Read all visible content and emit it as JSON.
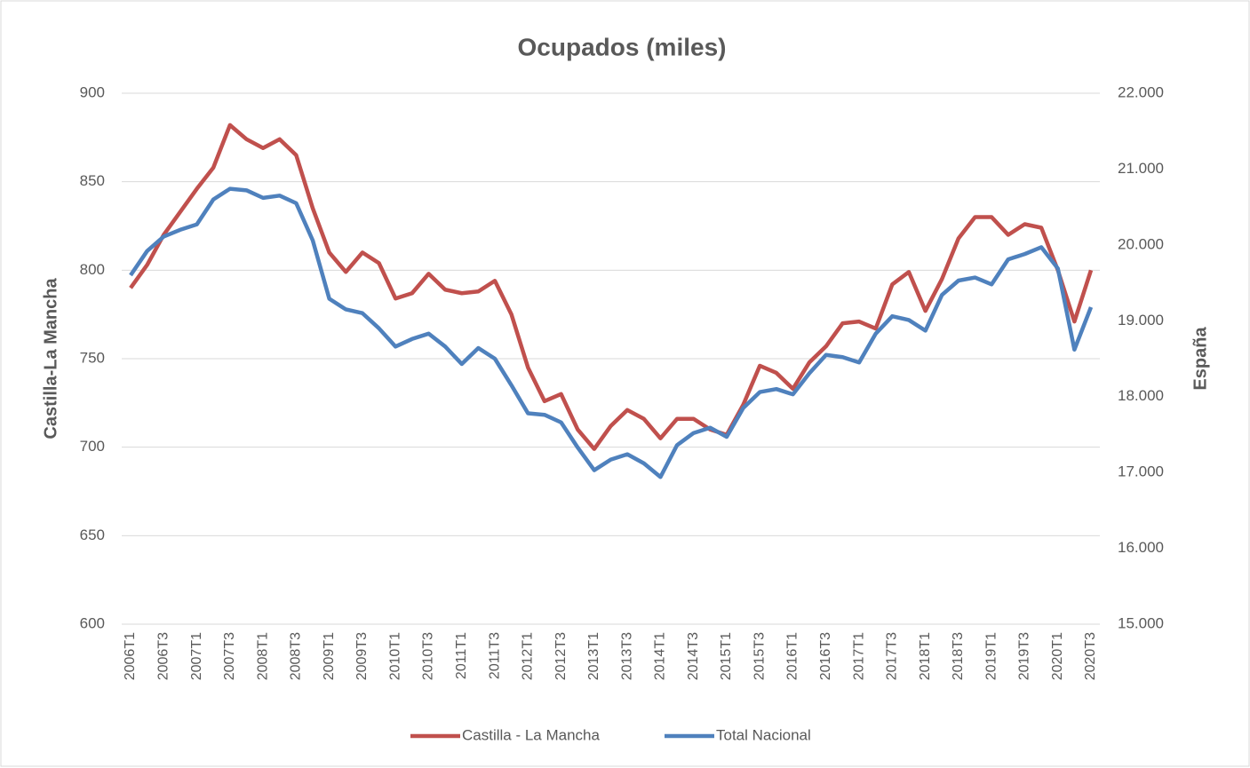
{
  "chart_data": {
    "type": "line",
    "title": "Ocupados (miles)",
    "y_label": "Castilla-La Mancha",
    "y2_label": "España",
    "categories": [
      "2006T1",
      null,
      "2006T3",
      null,
      "2007T1",
      null,
      "2007T3",
      null,
      "2008T1",
      null,
      "2008T3",
      null,
      "2009T1",
      null,
      "2009T3",
      null,
      "2010T1",
      null,
      "2010T3",
      null,
      "2011T1",
      null,
      "2011T3",
      null,
      "2012T1",
      null,
      "2012T3",
      null,
      "2013T1",
      null,
      "2013T3",
      null,
      "2014T1",
      null,
      "2014T3",
      null,
      "2015T1",
      null,
      "2015T3",
      null,
      "2016T1",
      null,
      "2016T3",
      null,
      "2017T1",
      null,
      "2017T3",
      null,
      "2018T1",
      null,
      "2018T3",
      null,
      "2019T1",
      null,
      "2019T3",
      null,
      "2020T1",
      null,
      "2020T3"
    ],
    "series": [
      {
        "name": "Castilla - La Mancha",
        "color": "#c0504d",
        "axis": "y",
        "values": [
          790,
          803,
          820,
          833,
          846,
          858,
          882,
          874,
          869,
          874,
          865,
          835,
          810,
          799,
          810,
          804,
          784,
          787,
          798,
          789,
          787,
          788,
          794,
          775,
          745,
          726,
          730,
          710,
          699,
          712,
          721,
          716,
          705,
          716,
          716,
          710,
          707,
          724,
          746,
          742,
          733,
          748,
          757,
          770,
          771,
          767,
          792,
          799,
          777,
          795,
          818,
          830,
          830,
          820,
          826,
          824,
          800,
          771,
          800
        ]
      },
      {
        "name": "Total Nacional",
        "color": "#4f81bd",
        "axis": "y2",
        "values": [
          19600,
          19920,
          20110,
          20200,
          20270,
          20600,
          20740,
          20720,
          20620,
          20650,
          20550,
          20060,
          19290,
          19150,
          19100,
          18900,
          18660,
          18760,
          18830,
          18660,
          18430,
          18640,
          18500,
          18150,
          17780,
          17760,
          17660,
          17330,
          17030,
          17170,
          17240,
          17120,
          16940,
          17360,
          17520,
          17590,
          17470,
          17850,
          18060,
          18100,
          18030,
          18310,
          18550,
          18520,
          18450,
          18830,
          19060,
          19010,
          18870,
          19340,
          19530,
          19570,
          19480,
          19810,
          19880,
          19970,
          19690,
          18620,
          19180
        ]
      }
    ],
    "ylim": [
      600,
      900
    ],
    "yticks": [
      600,
      650,
      700,
      750,
      800,
      850,
      900
    ],
    "y2lim": [
      15000,
      22000
    ],
    "y2ticks": [
      {
        "value": 15000,
        "label": "15.000"
      },
      {
        "value": 16000,
        "label": "16.000"
      },
      {
        "value": 17000,
        "label": "17.000"
      },
      {
        "value": 18000,
        "label": "18.000"
      },
      {
        "value": 19000,
        "label": "19.000"
      },
      {
        "value": 20000,
        "label": "20.000"
      },
      {
        "value": 21000,
        "label": "21.000"
      },
      {
        "value": 22000,
        "label": "22.000"
      }
    ],
    "grid": true,
    "legend": "bottom"
  }
}
